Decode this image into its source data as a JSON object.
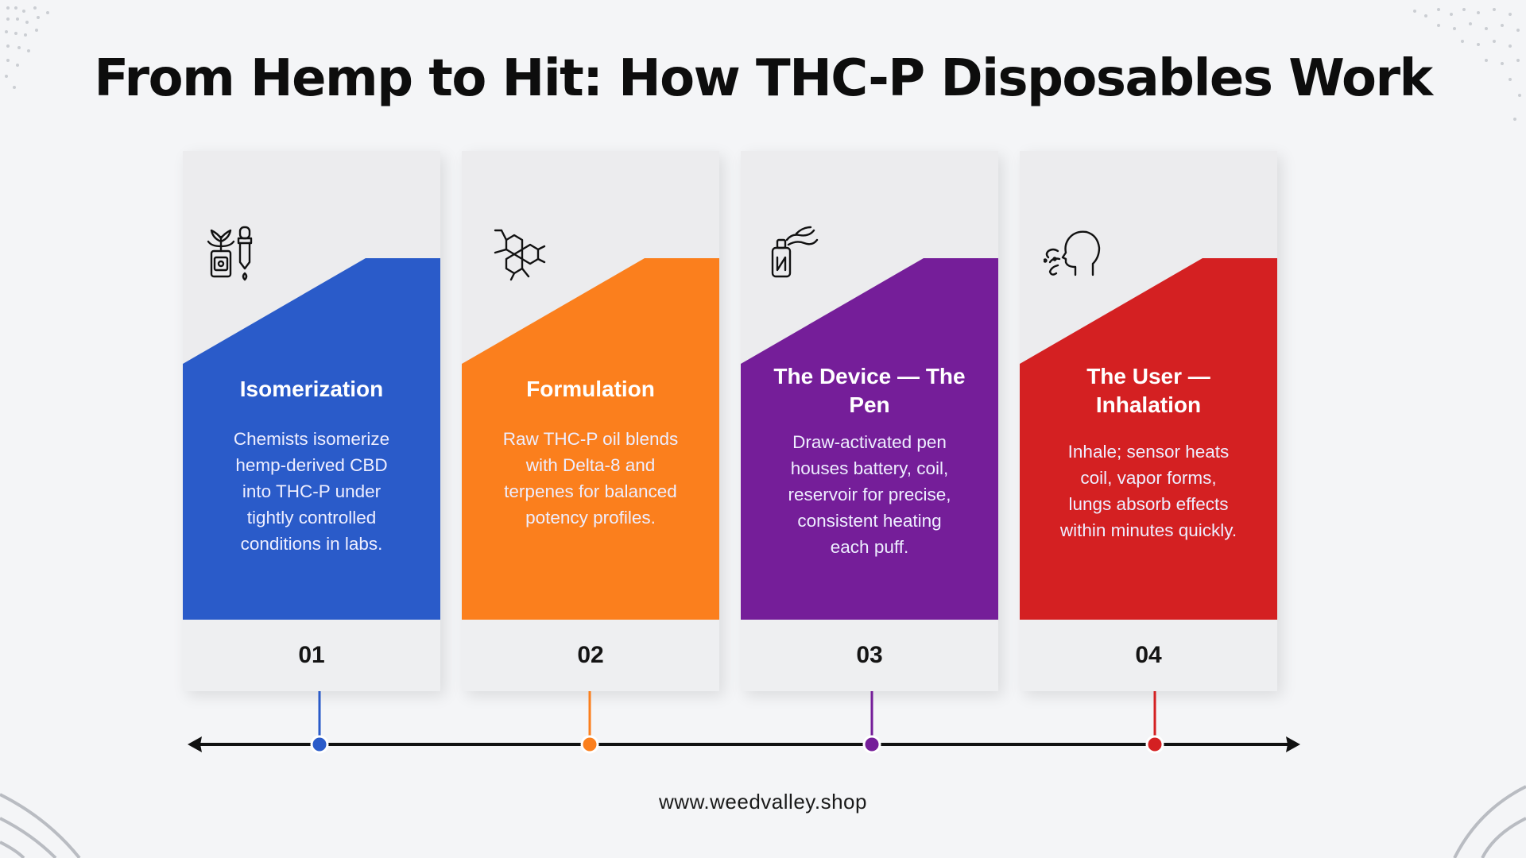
{
  "title": "From Hemp to Hit: How THC-P Disposables Work",
  "steps": [
    {
      "number": "01",
      "heading": "Isomerization",
      "description": "Chemists isomerize hemp-derived CBD into THC-P under tightly controlled conditions in labs.",
      "color": "#2a5bc9",
      "icon": "hemp-extract-icon"
    },
    {
      "number": "02",
      "heading": "Formulation",
      "description": "Raw THC-P oil blends with Delta-8 and terpenes for balanced potency profiles.",
      "color": "#fb7f1d",
      "icon": "molecule-icon"
    },
    {
      "number": "03",
      "heading": "The Device — The Pen",
      "description": "Draw-activated pen houses battery, coil, reservoir for precise, consistent heating each puff.",
      "color": "#751e99",
      "icon": "vape-pen-icon"
    },
    {
      "number": "04",
      "heading": "The User — Inhalation",
      "description": "Inhale; sensor heats coil, vapor forms, lungs absorb effects within minutes quickly.",
      "color": "#d42022",
      "icon": "inhale-head-icon"
    }
  ],
  "footer": {
    "url": "www.weedvalley.shop"
  }
}
